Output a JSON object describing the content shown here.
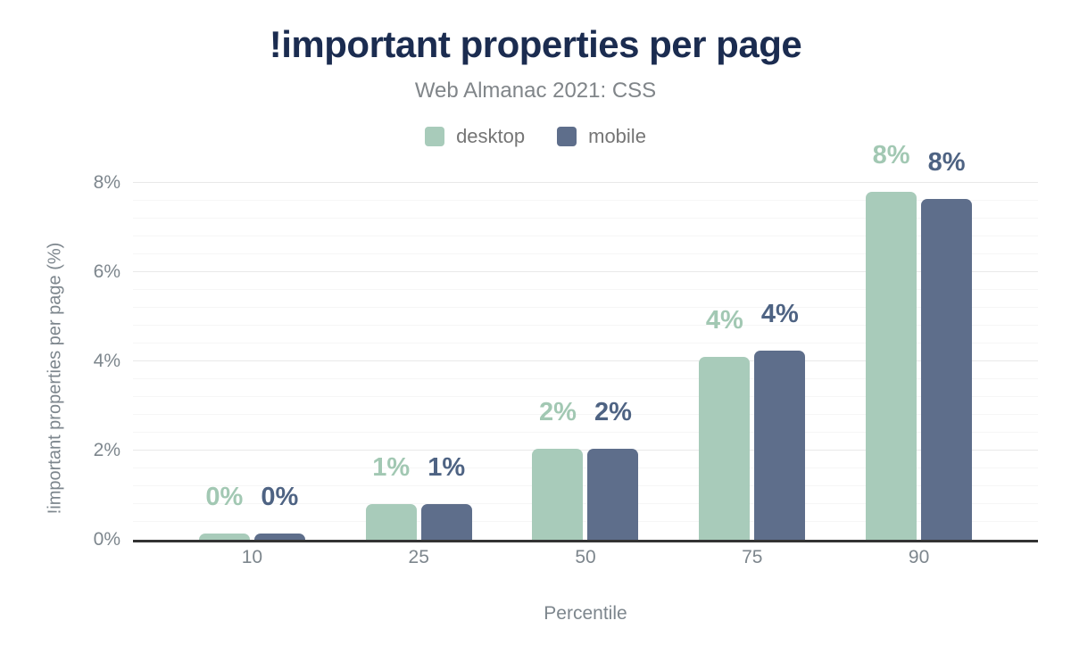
{
  "chart_data": {
    "type": "bar",
    "title": "!important properties per page",
    "subtitle": "Web Almanac 2021: CSS",
    "xlabel": "Percentile",
    "ylabel": "!important properties per page (%)",
    "categories": [
      "10",
      "25",
      "50",
      "75",
      "90"
    ],
    "series": [
      {
        "name": "desktop",
        "color": "#a8cbba",
        "label_color": "#a2c8b3",
        "values": [
          0.15,
          0.8,
          2.05,
          4.1,
          7.8
        ],
        "labels": [
          "0%",
          "1%",
          "2%",
          "4%",
          "8%"
        ]
      },
      {
        "name": "mobile",
        "color": "#5e6e8b",
        "label_color": "#4e6383",
        "values": [
          0.15,
          0.8,
          2.05,
          4.25,
          7.65
        ],
        "labels": [
          "0%",
          "1%",
          "2%",
          "4%",
          "8%"
        ]
      }
    ],
    "yticks": [
      {
        "value": 0,
        "label": "0%"
      },
      {
        "value": 2,
        "label": "2%"
      },
      {
        "value": 4,
        "label": "4%"
      },
      {
        "value": 6,
        "label": "6%"
      },
      {
        "value": 8,
        "label": "8%"
      }
    ],
    "ylim": [
      0,
      8
    ],
    "grid": {
      "minor_step": 0.4,
      "major_step": 2,
      "on": true
    },
    "legend_position": "top"
  },
  "colors": {
    "title_text": "#1b2c50",
    "muted_text": "#757575",
    "tick_text": "#7d868d",
    "axis_line": "#333333",
    "background": "#ffffff"
  }
}
